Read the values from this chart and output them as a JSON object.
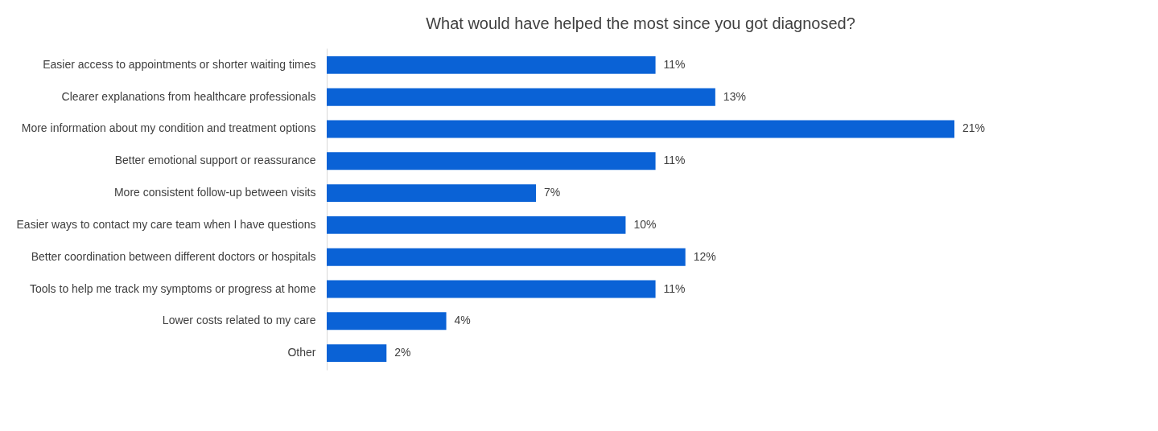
{
  "chart_data": {
    "type": "bar",
    "orientation": "horizontal",
    "title": "What would have helped the most since you got diagnosed?",
    "categories": [
      "Easier access to appointments or shorter waiting times",
      "Clearer explanations from healthcare professionals",
      "More information about my condition and treatment options",
      "Better emotional support or reassurance",
      "More consistent follow-up between visits",
      "Easier ways to contact my care team when I have questions",
      "Better coordination between different doctors or hospitals",
      "Tools to help me track my symptoms or progress at home",
      "Lower costs related to my care",
      "Other"
    ],
    "values": [
      11,
      13,
      21,
      11,
      7,
      10,
      12,
      11,
      4,
      2
    ],
    "value_labels": [
      "11%",
      "13%",
      "21%",
      "11%",
      "7%",
      "10%",
      "12%",
      "11%",
      "4%",
      "2%"
    ],
    "color": "#0a62d6"
  }
}
